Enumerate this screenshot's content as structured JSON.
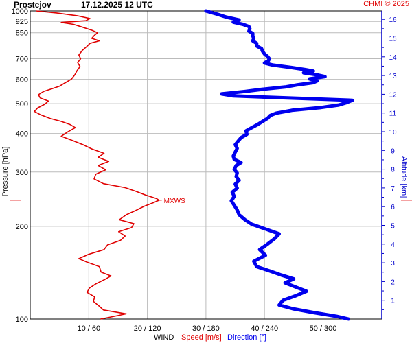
{
  "header": {
    "station": "Prostejov",
    "datetime": "17.12.2025 12 UTC",
    "copyright": "CHMI © 2025"
  },
  "chart_data": {
    "type": "line",
    "title": "Prostejov 17.12.2025 12 UTC",
    "ylabel": "Pressure [hPa]",
    "y2label": "Altitude [km]",
    "x_caption": "WIND",
    "speed_caption": "Speed [m/s]",
    "direction_caption": "Direction [°]",
    "y_scale": "log",
    "ylim": [
      1000,
      100
    ],
    "pressure_ticks": [
      "100",
      "200",
      "300",
      "400",
      "500",
      "600",
      "700",
      "850",
      "925",
      "1000"
    ],
    "altitude_ticks": [
      "1",
      "2",
      "3",
      "4",
      "5",
      "6",
      "7",
      "8",
      "9",
      "10",
      "11",
      "12",
      "13",
      "14",
      "15",
      "16"
    ],
    "x_ticks": [
      "10 / 60",
      "20 / 120",
      "30 / 180",
      "40 / 240",
      "50 / 300"
    ],
    "speed_xlim": [
      0,
      60
    ],
    "direction_xlim": [
      0,
      360
    ],
    "grid": true,
    "annotation": {
      "text": "MXWS",
      "pressure_hpa": 243,
      "speed_ms": 22
    },
    "colors": {
      "speed": "#e00000",
      "direction": "#0000ee",
      "grid": "#bbbbbb",
      "altitude_axis": "#0000cc"
    },
    "series": [
      {
        "name": "Speed [m/s]",
        "points": [
          [
            1000,
            1.0
          ],
          [
            985,
            4.5
          ],
          [
            965,
            8.0
          ],
          [
            945,
            10.2
          ],
          [
            930,
            9.5
          ],
          [
            918,
            5.3
          ],
          [
            905,
            7.4
          ],
          [
            885,
            9.0
          ],
          [
            865,
            10.6
          ],
          [
            850,
            11.5
          ],
          [
            835,
            11.0
          ],
          [
            815,
            10.5
          ],
          [
            800,
            11.8
          ],
          [
            785,
            10.2
          ],
          [
            765,
            9.6
          ],
          [
            745,
            8.9
          ],
          [
            720,
            8.3
          ],
          [
            700,
            8.6
          ],
          [
            680,
            8.1
          ],
          [
            660,
            8.5
          ],
          [
            640,
            8.0
          ],
          [
            620,
            7.6
          ],
          [
            600,
            7.0
          ],
          [
            585,
            6.0
          ],
          [
            570,
            5.0
          ],
          [
            560,
            3.8
          ],
          [
            548,
            2.3
          ],
          [
            535,
            1.4
          ],
          [
            522,
            1.7
          ],
          [
            510,
            3.1
          ],
          [
            498,
            2.5
          ],
          [
            485,
            1.3
          ],
          [
            472,
            0.7
          ],
          [
            460,
            1.8
          ],
          [
            448,
            3.4
          ],
          [
            438,
            5.3
          ],
          [
            428,
            6.8
          ],
          [
            418,
            7.7
          ],
          [
            405,
            6.4
          ],
          [
            392,
            5.3
          ],
          [
            380,
            7.2
          ],
          [
            368,
            9.0
          ],
          [
            356,
            10.6
          ],
          [
            345,
            12.6
          ],
          [
            335,
            11.6
          ],
          [
            325,
            13.4
          ],
          [
            315,
            11.6
          ],
          [
            305,
            12.9
          ],
          [
            295,
            11.2
          ],
          [
            285,
            10.9
          ],
          [
            275,
            12.5
          ],
          [
            267,
            16.2
          ],
          [
            260,
            18.0
          ],
          [
            253,
            19.6
          ],
          [
            246,
            21.6
          ],
          [
            243,
            22.0
          ],
          [
            238,
            20.9
          ],
          [
            232,
            19.4
          ],
          [
            225,
            18.0
          ],
          [
            218,
            16.4
          ],
          [
            210,
            15.2
          ],
          [
            204,
            17.7
          ],
          [
            198,
            17.3
          ],
          [
            192,
            15.1
          ],
          [
            186,
            16.2
          ],
          [
            180,
            15.4
          ],
          [
            174,
            13.2
          ],
          [
            168,
            12.6
          ],
          [
            162,
            9.9
          ],
          [
            157,
            8.3
          ],
          [
            153,
            9.7
          ],
          [
            148,
            11.8
          ],
          [
            142,
            12.1
          ],
          [
            138,
            13.8
          ],
          [
            134,
            12.6
          ],
          [
            130,
            11.2
          ],
          [
            126,
            10.1
          ],
          [
            122,
            9.7
          ],
          [
            118,
            11.0
          ],
          [
            114,
            10.8
          ],
          [
            110,
            11.8
          ],
          [
            107,
            12.5
          ],
          [
            104,
            16.4
          ],
          [
            102,
            14.3
          ],
          [
            100,
            12.0
          ]
        ]
      },
      {
        "name": "Direction [°]",
        "points": [
          [
            1000,
            180
          ],
          [
            975,
            192
          ],
          [
            955,
            201
          ],
          [
            935,
            214
          ],
          [
            920,
            208
          ],
          [
            905,
            218
          ],
          [
            890,
            224
          ],
          [
            875,
            225
          ],
          [
            860,
            224
          ],
          [
            845,
            228
          ],
          [
            830,
            228
          ],
          [
            815,
            229
          ],
          [
            800,
            228
          ],
          [
            785,
            232
          ],
          [
            770,
            232
          ],
          [
            755,
            237
          ],
          [
            740,
            238
          ],
          [
            725,
            240
          ],
          [
            712,
            243
          ],
          [
            700,
            245
          ],
          [
            690,
            244
          ],
          [
            678,
            240
          ],
          [
            668,
            248
          ],
          [
            655,
            268
          ],
          [
            645,
            282
          ],
          [
            638,
            290
          ],
          [
            630,
            280
          ],
          [
            622,
            292
          ],
          [
            612,
            302
          ],
          [
            602,
            286
          ],
          [
            593,
            294
          ],
          [
            585,
            290
          ],
          [
            576,
            274
          ],
          [
            567,
            262
          ],
          [
            558,
            240
          ],
          [
            548,
            220
          ],
          [
            538,
            196
          ],
          [
            530,
            208
          ],
          [
            522,
            264
          ],
          [
            513,
            330
          ],
          [
            504,
            324
          ],
          [
            495,
            316
          ],
          [
            486,
            298
          ],
          [
            476,
            268
          ],
          [
            466,
            252
          ],
          [
            458,
            246
          ],
          [
            448,
            243
          ],
          [
            438,
            238
          ],
          [
            428,
            233
          ],
          [
            418,
            227
          ],
          [
            408,
            221
          ],
          [
            398,
            222
          ],
          [
            388,
            216
          ],
          [
            378,
            213
          ],
          [
            368,
            210
          ],
          [
            358,
            212
          ],
          [
            348,
            210
          ],
          [
            338,
            208
          ],
          [
            330,
            209
          ],
          [
            322,
            216
          ],
          [
            315,
            211
          ],
          [
            306,
            209
          ],
          [
            298,
            212
          ],
          [
            290,
            211
          ],
          [
            282,
            214
          ],
          [
            274,
            210
          ],
          [
            266,
            212
          ],
          [
            258,
            207
          ],
          [
            250,
            209
          ],
          [
            242,
            206
          ],
          [
            234,
            209
          ],
          [
            226,
            212
          ],
          [
            218,
            214
          ],
          [
            210,
            220
          ],
          [
            203,
            227
          ],
          [
            196,
            241
          ],
          [
            189,
            255
          ],
          [
            182,
            250
          ],
          [
            175,
            243
          ],
          [
            168,
            235
          ],
          [
            161,
            241
          ],
          [
            154,
            229
          ],
          [
            148,
            232
          ],
          [
            143,
            246
          ],
          [
            139,
            257
          ],
          [
            135,
            270
          ],
          [
            131,
            261
          ],
          [
            127,
            272
          ],
          [
            123,
            283
          ],
          [
            119,
            272
          ],
          [
            115,
            259
          ],
          [
            111,
            255
          ],
          [
            108,
            269
          ],
          [
            105,
            290
          ],
          [
            102,
            314
          ],
          [
            100,
            326
          ]
        ]
      }
    ]
  }
}
